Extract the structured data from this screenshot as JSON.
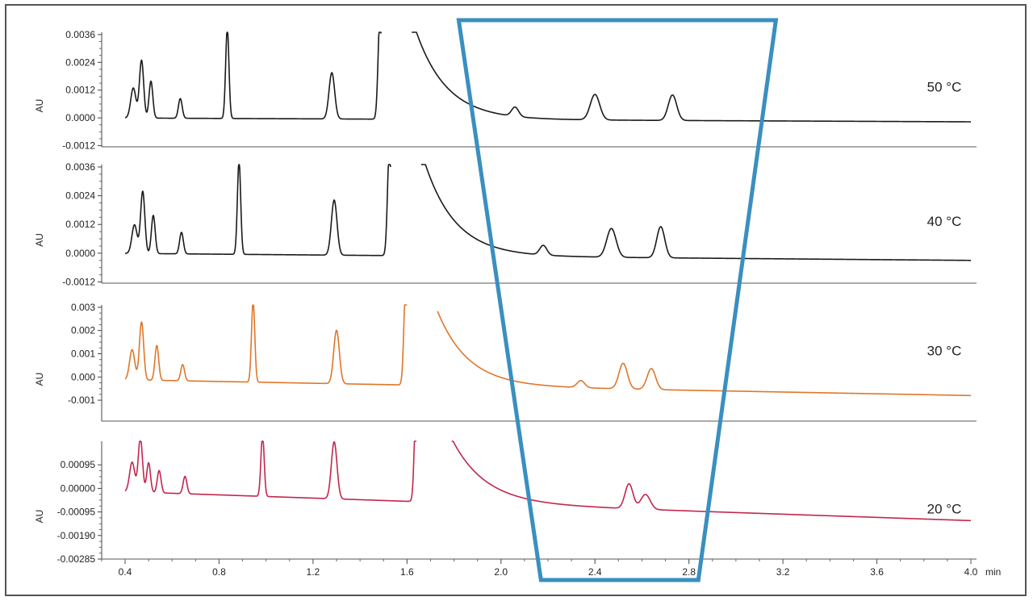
{
  "chart_data": {
    "type": "line",
    "x_unit": "min",
    "x_ticks": [
      "0.4",
      "0.8",
      "1.2",
      "1.6",
      "2.0",
      "2.4",
      "2.8",
      "3.2",
      "3.6",
      "4.0"
    ],
    "xlim": [
      0.3,
      4.0
    ],
    "panels": [
      {
        "label": "50 °C",
        "ylabel": "AU",
        "color": "#1a1a1a",
        "ylim": [
          -0.00125,
          0.0037
        ],
        "yticks": [
          "0.0036",
          "0.0024",
          "0.0012",
          "0.0000",
          "-0.0012"
        ],
        "ytick_values": [
          0.0036,
          0.0024,
          0.0012,
          0.0,
          -0.0012
        ],
        "baseline_start": 0.0,
        "baseline_end": -0.00017,
        "gap": [
          1.49,
          1.62
        ],
        "peaks": [
          {
            "t": 0.435,
            "h": 0.0013,
            "w": 0.011
          },
          {
            "t": 0.47,
            "h": 0.0025,
            "w": 0.009
          },
          {
            "t": 0.51,
            "h": 0.0016,
            "w": 0.008
          },
          {
            "t": 0.635,
            "h": 0.00085,
            "w": 0.008
          },
          {
            "t": 0.835,
            "h": 0.0039,
            "w": 0.007
          },
          {
            "t": 1.28,
            "h": 0.002,
            "w": 0.012
          },
          {
            "t": 1.485,
            "h": 0.0045,
            "w": 0.008
          },
          {
            "t": 2.06,
            "h": 0.0004,
            "w": 0.015
          },
          {
            "t": 2.4,
            "h": 0.0011,
            "w": 0.02
          },
          {
            "t": 2.73,
            "h": 0.0011,
            "w": 0.018
          }
        ],
        "tail": {
          "amp": 0.0044,
          "decay": 0.13
        }
      },
      {
        "label": "40 °C",
        "ylabel": "AU",
        "color": "#1a1a1a",
        "ylim": [
          -0.00125,
          0.0037
        ],
        "yticks": [
          "0.0036",
          "0.0024",
          "0.0012",
          "0.0000",
          "-0.0012"
        ],
        "ytick_values": [
          0.0036,
          0.0024,
          0.0012,
          0.0,
          -0.0012
        ],
        "baseline_start": 0.0,
        "baseline_end": -0.0003,
        "gap": [
          1.53,
          1.66
        ],
        "peaks": [
          {
            "t": 0.44,
            "h": 0.0012,
            "w": 0.011
          },
          {
            "t": 0.475,
            "h": 0.0026,
            "w": 0.009
          },
          {
            "t": 0.52,
            "h": 0.0016,
            "w": 0.008
          },
          {
            "t": 0.64,
            "h": 0.0009,
            "w": 0.008
          },
          {
            "t": 0.885,
            "h": 0.0039,
            "w": 0.007
          },
          {
            "t": 1.29,
            "h": 0.0023,
            "w": 0.012
          },
          {
            "t": 1.525,
            "h": 0.0045,
            "w": 0.008
          },
          {
            "t": 2.18,
            "h": 0.0004,
            "w": 0.015
          },
          {
            "t": 2.47,
            "h": 0.0012,
            "w": 0.02
          },
          {
            "t": 2.68,
            "h": 0.0013,
            "w": 0.017
          }
        ],
        "tail": {
          "amp": 0.0044,
          "decay": 0.13
        }
      },
      {
        "label": "30 °C",
        "ylabel": "AU",
        "color": "#e0762a",
        "ylim": [
          -0.0019,
          0.0031
        ],
        "yticks": [
          "0.003",
          "0.002",
          "0.001",
          "0.000",
          "-0.001"
        ],
        "ytick_values": [
          0.003,
          0.002,
          0.001,
          0.0,
          -0.001
        ],
        "baseline_start": -0.0001,
        "baseline_end": -0.0008,
        "gap": [
          1.6,
          1.73
        ],
        "peaks": [
          {
            "t": 0.43,
            "h": 0.0013,
            "w": 0.011
          },
          {
            "t": 0.47,
            "h": 0.0025,
            "w": 0.009
          },
          {
            "t": 0.535,
            "h": 0.0015,
            "w": 0.008
          },
          {
            "t": 0.645,
            "h": 0.0007,
            "w": 0.008
          },
          {
            "t": 0.945,
            "h": 0.0035,
            "w": 0.007
          },
          {
            "t": 1.3,
            "h": 0.0023,
            "w": 0.012
          },
          {
            "t": 1.595,
            "h": 0.0045,
            "w": 0.008
          },
          {
            "t": 2.34,
            "h": 0.0003,
            "w": 0.016
          },
          {
            "t": 2.52,
            "h": 0.0011,
            "w": 0.018
          },
          {
            "t": 2.64,
            "h": 0.0009,
            "w": 0.018
          }
        ],
        "tail": {
          "amp": 0.0032,
          "decay": 0.13
        }
      },
      {
        "label": "20 °C",
        "ylabel": "AU",
        "color": "#c2264d",
        "ylim": [
          -0.00285,
          0.0019
        ],
        "yticks": [
          "0.00095",
          "0.00000",
          "-0.00095",
          "-0.00190",
          "-0.00285"
        ],
        "ytick_values": [
          0.00095,
          0.0,
          -0.00095,
          -0.0019,
          -0.00285
        ],
        "baseline_start": -0.0001,
        "baseline_end": -0.0013,
        "gap": [
          1.64,
          1.79
        ],
        "peaks": [
          {
            "t": 0.43,
            "h": 0.0012,
            "w": 0.011
          },
          {
            "t": 0.465,
            "h": 0.0022,
            "w": 0.009
          },
          {
            "t": 0.5,
            "h": 0.0012,
            "w": 0.008
          },
          {
            "t": 0.545,
            "h": 0.0009,
            "w": 0.008
          },
          {
            "t": 0.655,
            "h": 0.0007,
            "w": 0.008
          },
          {
            "t": 0.985,
            "h": 0.0025,
            "w": 0.007
          },
          {
            "t": 1.29,
            "h": 0.0023,
            "w": 0.012
          },
          {
            "t": 1.64,
            "h": 0.0045,
            "w": 0.008
          },
          {
            "t": 2.545,
            "h": 0.001,
            "w": 0.017
          },
          {
            "t": 2.615,
            "h": 0.0006,
            "w": 0.02
          }
        ],
        "tail": {
          "amp": 0.0026,
          "decay": 0.14
        }
      }
    ],
    "highlight": {
      "color": "#3a8fc0",
      "top": [
        1.82,
        3.17
      ],
      "bottom": [
        2.17,
        2.84
      ]
    }
  }
}
